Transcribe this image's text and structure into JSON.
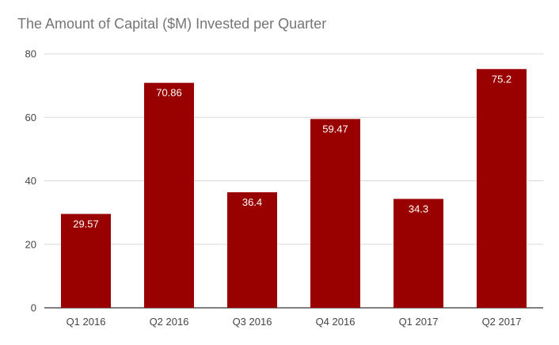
{
  "chart_data": {
    "type": "bar",
    "title": "The Amount of Capital ($M) Invested per Quarter",
    "xlabel": "",
    "ylabel": "",
    "categories": [
      "Q1 2016",
      "Q2 2016",
      "Q3 2016",
      "Q4 2016",
      "Q1 2017",
      "Q2 2017"
    ],
    "values": [
      29.57,
      70.86,
      36.4,
      59.47,
      34.3,
      75.2
    ],
    "data_labels": [
      "29.57",
      "70.86",
      "36.4",
      "59.47",
      "34.3",
      "75.2"
    ],
    "ylim": [
      0,
      80
    ],
    "yticks": [
      0,
      20,
      40,
      60,
      80
    ],
    "grid": true,
    "bar_color": "#990000",
    "grid_color": "#d9d9d9",
    "axis_color": "#333333"
  }
}
